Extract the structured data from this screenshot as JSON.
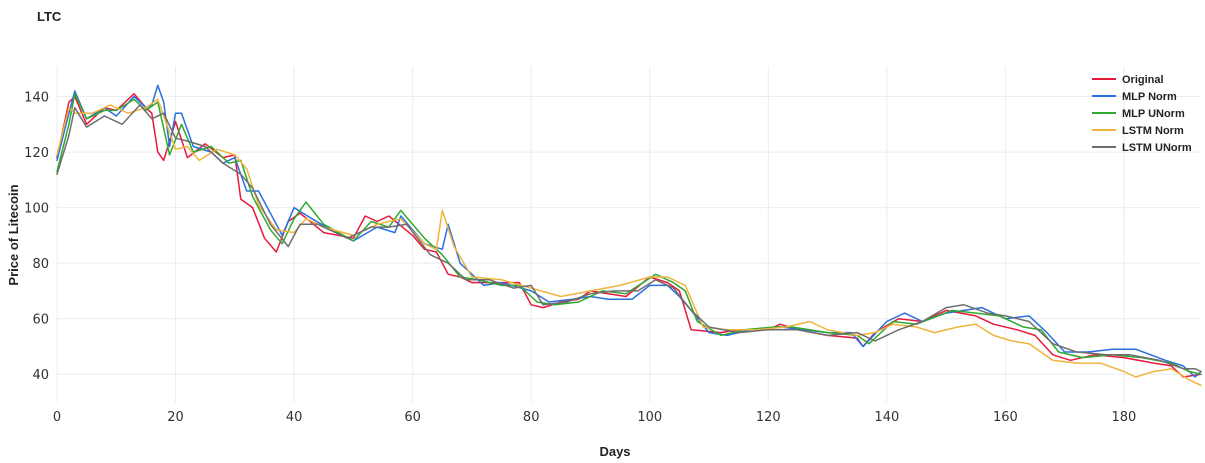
{
  "chart_data": {
    "type": "line",
    "title": "LTC",
    "xlabel": "Days",
    "ylabel": "Price of Litecoin",
    "xlim": [
      0,
      193
    ],
    "ylim": [
      30,
      151
    ],
    "xticks": [
      0,
      20,
      40,
      60,
      80,
      100,
      120,
      140,
      160,
      180
    ],
    "yticks": [
      40,
      60,
      80,
      100,
      120,
      140
    ],
    "grid": true,
    "legend_position": "top-right",
    "series": [
      {
        "name": "Original",
        "color": "#e8193c",
        "points": [
          [
            0,
            118
          ],
          [
            2,
            138
          ],
          [
            3,
            140
          ],
          [
            5,
            130
          ],
          [
            8,
            136
          ],
          [
            10,
            135
          ],
          [
            13,
            141
          ],
          [
            15,
            136
          ],
          [
            16,
            134
          ],
          [
            17,
            120
          ],
          [
            18,
            117
          ],
          [
            20,
            131
          ],
          [
            22,
            118
          ],
          [
            25,
            123
          ],
          [
            28,
            118
          ],
          [
            30,
            119
          ],
          [
            31,
            103
          ],
          [
            33,
            100
          ],
          [
            35,
            89
          ],
          [
            37,
            84
          ],
          [
            39,
            95
          ],
          [
            41,
            98
          ],
          [
            45,
            91
          ],
          [
            50,
            89
          ],
          [
            52,
            97
          ],
          [
            54,
            95
          ],
          [
            56,
            97
          ],
          [
            60,
            90
          ],
          [
            62,
            85
          ],
          [
            64,
            84
          ],
          [
            66,
            76
          ],
          [
            68,
            75
          ],
          [
            70,
            73
          ],
          [
            75,
            73
          ],
          [
            78,
            73
          ],
          [
            80,
            65
          ],
          [
            82,
            64
          ],
          [
            85,
            66
          ],
          [
            88,
            67
          ],
          [
            90,
            70
          ],
          [
            93,
            69
          ],
          [
            96,
            68
          ],
          [
            100,
            75
          ],
          [
            103,
            73
          ],
          [
            105,
            70
          ],
          [
            107,
            56
          ],
          [
            112,
            55
          ],
          [
            115,
            56
          ],
          [
            120,
            56
          ],
          [
            122,
            58
          ],
          [
            125,
            56
          ],
          [
            130,
            54
          ],
          [
            135,
            53
          ],
          [
            136,
            50
          ],
          [
            138,
            55
          ],
          [
            142,
            60
          ],
          [
            146,
            59
          ],
          [
            150,
            63
          ],
          [
            155,
            61
          ],
          [
            158,
            58
          ],
          [
            162,
            56
          ],
          [
            165,
            54
          ],
          [
            168,
            47
          ],
          [
            171,
            45
          ],
          [
            175,
            47
          ],
          [
            180,
            46
          ],
          [
            185,
            44
          ],
          [
            188,
            43
          ],
          [
            190,
            39
          ],
          [
            193,
            40
          ]
        ]
      },
      {
        "name": "MLP Norm",
        "color": "#2b6fe0",
        "points": [
          [
            0,
            117
          ],
          [
            2,
            134
          ],
          [
            3,
            142
          ],
          [
            5,
            132
          ],
          [
            8,
            136
          ],
          [
            10,
            133
          ],
          [
            13,
            140
          ],
          [
            15,
            136
          ],
          [
            16,
            137
          ],
          [
            17,
            144
          ],
          [
            18,
            138
          ],
          [
            19,
            122
          ],
          [
            20,
            134
          ],
          [
            21,
            134
          ],
          [
            23,
            122
          ],
          [
            26,
            120
          ],
          [
            28,
            116
          ],
          [
            30,
            118
          ],
          [
            32,
            106
          ],
          [
            34,
            106
          ],
          [
            36,
            98
          ],
          [
            38,
            90
          ],
          [
            40,
            100
          ],
          [
            43,
            96
          ],
          [
            47,
            91
          ],
          [
            50,
            88
          ],
          [
            54,
            93
          ],
          [
            57,
            91
          ],
          [
            58,
            97
          ],
          [
            62,
            87
          ],
          [
            65,
            85
          ],
          [
            66,
            94
          ],
          [
            68,
            80
          ],
          [
            72,
            72
          ],
          [
            75,
            73
          ],
          [
            80,
            70
          ],
          [
            83,
            66
          ],
          [
            87,
            67
          ],
          [
            90,
            68
          ],
          [
            93,
            67
          ],
          [
            97,
            67
          ],
          [
            100,
            72
          ],
          [
            103,
            72
          ],
          [
            105,
            68
          ],
          [
            107,
            63
          ],
          [
            110,
            55
          ],
          [
            113,
            54
          ],
          [
            117,
            56
          ],
          [
            122,
            57
          ],
          [
            126,
            56
          ],
          [
            130,
            55
          ],
          [
            134,
            55
          ],
          [
            136,
            50
          ],
          [
            140,
            59
          ],
          [
            143,
            62
          ],
          [
            146,
            59
          ],
          [
            150,
            62
          ],
          [
            156,
            64
          ],
          [
            160,
            60
          ],
          [
            164,
            61
          ],
          [
            167,
            55
          ],
          [
            170,
            48
          ],
          [
            174,
            48
          ],
          [
            178,
            49
          ],
          [
            182,
            49
          ],
          [
            187,
            45
          ],
          [
            190,
            43
          ],
          [
            192,
            39
          ],
          [
            193,
            41
          ]
        ]
      },
      {
        "name": "MLP UNorm",
        "color": "#2eaa2e",
        "points": [
          [
            0,
            113
          ],
          [
            2,
            130
          ],
          [
            3,
            141
          ],
          [
            5,
            132
          ],
          [
            8,
            135
          ],
          [
            10,
            135
          ],
          [
            13,
            139
          ],
          [
            15,
            135
          ],
          [
            17,
            138
          ],
          [
            19,
            119
          ],
          [
            21,
            130
          ],
          [
            23,
            120
          ],
          [
            26,
            122
          ],
          [
            29,
            116
          ],
          [
            31,
            117
          ],
          [
            33,
            104
          ],
          [
            36,
            92
          ],
          [
            38,
            87
          ],
          [
            40,
            96
          ],
          [
            42,
            102
          ],
          [
            45,
            94
          ],
          [
            50,
            88
          ],
          [
            53,
            95
          ],
          [
            56,
            93
          ],
          [
            58,
            99
          ],
          [
            62,
            89
          ],
          [
            65,
            83
          ],
          [
            68,
            75
          ],
          [
            71,
            74
          ],
          [
            75,
            72
          ],
          [
            78,
            72
          ],
          [
            81,
            66
          ],
          [
            84,
            65
          ],
          [
            88,
            66
          ],
          [
            92,
            70
          ],
          [
            96,
            69
          ],
          [
            101,
            76
          ],
          [
            104,
            73
          ],
          [
            106,
            70
          ],
          [
            108,
            59
          ],
          [
            112,
            54
          ],
          [
            116,
            56
          ],
          [
            121,
            57
          ],
          [
            124,
            57
          ],
          [
            130,
            55
          ],
          [
            135,
            54
          ],
          [
            137,
            51
          ],
          [
            141,
            59
          ],
          [
            145,
            58
          ],
          [
            151,
            63
          ],
          [
            155,
            62
          ],
          [
            159,
            61
          ],
          [
            163,
            57
          ],
          [
            166,
            56
          ],
          [
            169,
            48
          ],
          [
            173,
            46
          ],
          [
            178,
            47
          ],
          [
            183,
            46
          ],
          [
            188,
            44
          ],
          [
            191,
            41
          ],
          [
            193,
            40
          ]
        ]
      },
      {
        "name": "LSTM Norm",
        "color": "#f0b43c",
        "points": [
          [
            0,
            119
          ],
          [
            2,
            136
          ],
          [
            3,
            134
          ],
          [
            6,
            134
          ],
          [
            9,
            137
          ],
          [
            12,
            134
          ],
          [
            15,
            136
          ],
          [
            17,
            139
          ],
          [
            20,
            121
          ],
          [
            22,
            122
          ],
          [
            24,
            117
          ],
          [
            27,
            121
          ],
          [
            30,
            119
          ],
          [
            32,
            114
          ],
          [
            34,
            101
          ],
          [
            37,
            92
          ],
          [
            40,
            91
          ],
          [
            42,
            96
          ],
          [
            45,
            93
          ],
          [
            50,
            90
          ],
          [
            54,
            94
          ],
          [
            58,
            96
          ],
          [
            62,
            87
          ],
          [
            64,
            85
          ],
          [
            65,
            99
          ],
          [
            67,
            86
          ],
          [
            70,
            75
          ],
          [
            75,
            74
          ],
          [
            80,
            71
          ],
          [
            85,
            68
          ],
          [
            90,
            70
          ],
          [
            95,
            72
          ],
          [
            100,
            75
          ],
          [
            103,
            75
          ],
          [
            106,
            72
          ],
          [
            109,
            57
          ],
          [
            113,
            56
          ],
          [
            118,
            56
          ],
          [
            123,
            57
          ],
          [
            127,
            59
          ],
          [
            130,
            56
          ],
          [
            135,
            54
          ],
          [
            138,
            55
          ],
          [
            141,
            58
          ],
          [
            145,
            57
          ],
          [
            148,
            55
          ],
          [
            152,
            57
          ],
          [
            155,
            58
          ],
          [
            158,
            54
          ],
          [
            161,
            52
          ],
          [
            164,
            51
          ],
          [
            168,
            45
          ],
          [
            172,
            44
          ],
          [
            176,
            44
          ],
          [
            180,
            41
          ],
          [
            182,
            39
          ],
          [
            185,
            41
          ],
          [
            188,
            42
          ],
          [
            191,
            38
          ],
          [
            193,
            36
          ]
        ]
      },
      {
        "name": "LSTM UNorm",
        "color": "#6e6e6e",
        "points": [
          [
            0,
            112
          ],
          [
            2,
            126
          ],
          [
            3,
            136
          ],
          [
            5,
            129
          ],
          [
            8,
            133
          ],
          [
            11,
            130
          ],
          [
            14,
            137
          ],
          [
            16,
            132
          ],
          [
            18,
            134
          ],
          [
            20,
            125
          ],
          [
            22,
            124
          ],
          [
            25,
            122
          ],
          [
            28,
            116
          ],
          [
            31,
            112
          ],
          [
            33,
            107
          ],
          [
            36,
            94
          ],
          [
            39,
            86
          ],
          [
            41,
            94
          ],
          [
            44,
            94
          ],
          [
            49,
            89
          ],
          [
            53,
            93
          ],
          [
            56,
            93
          ],
          [
            59,
            94
          ],
          [
            63,
            83
          ],
          [
            66,
            80
          ],
          [
            69,
            74
          ],
          [
            73,
            74
          ],
          [
            77,
            71
          ],
          [
            80,
            72
          ],
          [
            82,
            65
          ],
          [
            86,
            66
          ],
          [
            90,
            69
          ],
          [
            94,
            70
          ],
          [
            98,
            70
          ],
          [
            101,
            74
          ],
          [
            104,
            71
          ],
          [
            107,
            63
          ],
          [
            110,
            57
          ],
          [
            115,
            55
          ],
          [
            120,
            56
          ],
          [
            125,
            56
          ],
          [
            130,
            54
          ],
          [
            135,
            55
          ],
          [
            138,
            52
          ],
          [
            142,
            56
          ],
          [
            146,
            59
          ],
          [
            150,
            64
          ],
          [
            153,
            65
          ],
          [
            157,
            62
          ],
          [
            160,
            61
          ],
          [
            164,
            59
          ],
          [
            168,
            51
          ],
          [
            172,
            48
          ],
          [
            177,
            47
          ],
          [
            181,
            47
          ],
          [
            186,
            45
          ],
          [
            190,
            42
          ],
          [
            192,
            42
          ],
          [
            193,
            41
          ]
        ]
      }
    ]
  }
}
